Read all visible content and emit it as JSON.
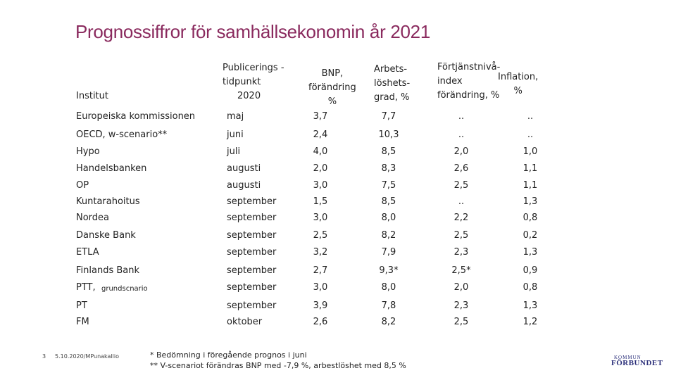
{
  "title": "Prognossiffror för samhällsekonomin år 2021",
  "headers": {
    "institut": "Institut",
    "publicering": [
      "Publicerings -",
      "tidpunkt",
      "2020"
    ],
    "bnp": [
      "BNP,",
      "förändring",
      "%"
    ],
    "arbetsloshet": [
      "Arbets-",
      "löshets-",
      "grad, %"
    ],
    "fortjanst": [
      "Förtjänstnivå-",
      "index",
      "förändring, %"
    ],
    "inflation": [
      "Inflation,",
      "%"
    ]
  },
  "rows": [
    {
      "institut": "Europeiska kommissionen",
      "tidpunkt": "maj",
      "bnp": "3,7",
      "arb": "7,7",
      "fort": "..",
      "infl": ".."
    },
    {
      "institut": "OECD, w-scenario**",
      "tidpunkt": "juni",
      "bnp": "2,4",
      "arb": "10,3",
      "fort": "..",
      "infl": ".."
    },
    {
      "institut": "Hypo",
      "tidpunkt": "juli",
      "bnp": "4,0",
      "arb": "8,5",
      "fort": "2,0",
      "infl": "1,0"
    },
    {
      "institut": "Handelsbanken",
      "tidpunkt": "augusti",
      "bnp": "2,0",
      "arb": "8,3",
      "fort": "2,6",
      "infl": "1,1"
    },
    {
      "institut": "OP",
      "tidpunkt": "augusti",
      "bnp": "3,0",
      "arb": "7,5",
      "fort": "2,5",
      "infl": "1,1"
    },
    {
      "institut": "Kuntarahoitus",
      "tidpunkt": "september",
      "bnp": "1,5",
      "arb": "8,5",
      "fort": "..",
      "infl": "1,3"
    },
    {
      "institut": "Nordea",
      "tidpunkt": "september",
      "bnp": "3,0",
      "arb": "8,0",
      "fort": "2,2",
      "infl": "0,8"
    },
    {
      "institut": "Danske Bank",
      "tidpunkt": "september",
      "bnp": "2,5",
      "arb": "8,2",
      "fort": "2,5",
      "infl": "0,2"
    },
    {
      "institut": "ETLA",
      "tidpunkt": "september",
      "bnp": "3,2",
      "arb": "7,9",
      "fort": "2,3",
      "infl": "1,3"
    },
    {
      "institut": "Finlands Bank",
      "tidpunkt": "september",
      "bnp": "2,7",
      "arb": "9,3*",
      "fort": "2,5*",
      "infl": "0,9"
    },
    {
      "institut": "PTT, ",
      "institut_small": "grundscnario",
      "tidpunkt": "september",
      "bnp": "3,0",
      "arb": "8,0",
      "fort": "2,0",
      "infl": "0,8"
    },
    {
      "institut": "PT",
      "tidpunkt": "september",
      "bnp": "3,9",
      "arb": "7,8",
      "fort": "2,3",
      "infl": "1,3"
    },
    {
      "institut": "FM",
      "tidpunkt": "oktober",
      "bnp": "2,6",
      "arb": "8,2",
      "fort": "2,5",
      "infl": "1,2"
    }
  ],
  "footnotes": [
    "* Bedömning i föregående prognos i juni",
    "** V-scenariot förändras BNP med -7,9 %, arbestlöshet med 8,5 %"
  ],
  "page_number": "3",
  "date_author": "5.10.2020/MPunakallio",
  "logo": {
    "top": "KOMMUN",
    "bottom": "FÖRBUNDET"
  }
}
